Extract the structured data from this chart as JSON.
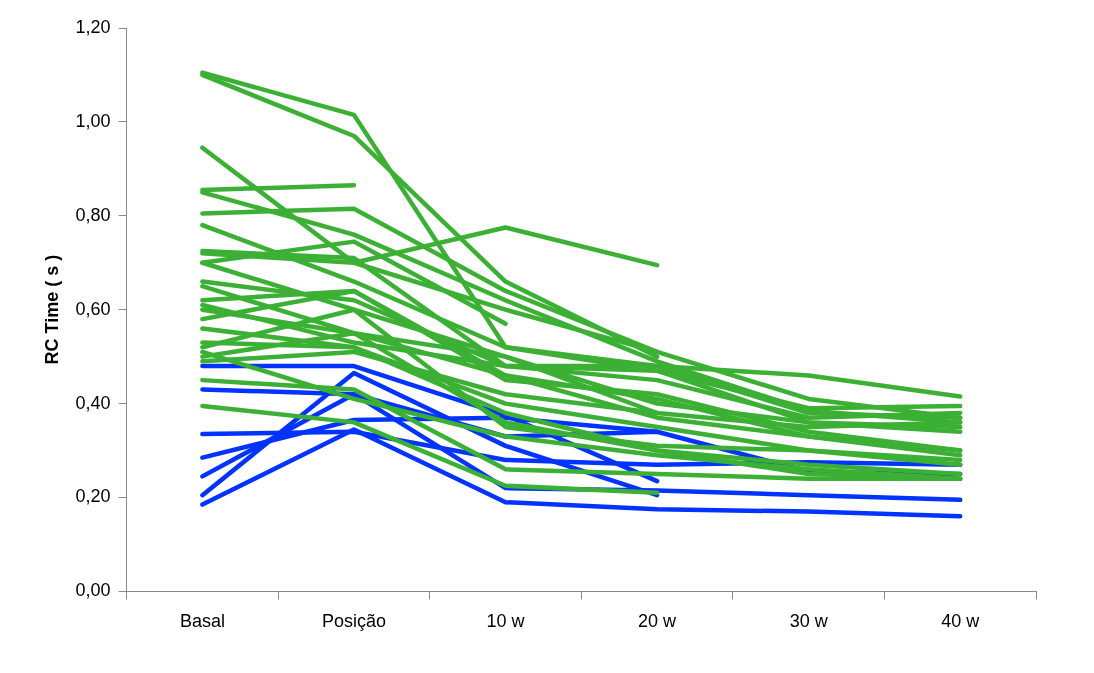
{
  "chart_data": {
    "type": "line",
    "ylabel": "RC Time ( s )",
    "categories": [
      "Basal",
      "Posição",
      "10 w",
      "20 w",
      "30 w",
      "40 w"
    ],
    "ylim": [
      0,
      1.2
    ],
    "yticks": [
      {
        "value": 0,
        "label": "0,00"
      },
      {
        "value": 0.2,
        "label": "0,20"
      },
      {
        "value": 0.4,
        "label": "0,40"
      },
      {
        "value": 0.6,
        "label": "0,60"
      },
      {
        "value": 0.8,
        "label": "0,80"
      },
      {
        "value": 1.0,
        "label": "1,00"
      },
      {
        "value": 1.2,
        "label": "1,20"
      }
    ],
    "grid": false,
    "legend": false,
    "marker": "none",
    "line_style": "solid",
    "series": [
      {
        "color": "#3cb034",
        "values": [
          1.1,
          0.97,
          0.66,
          0.5,
          null,
          null
        ]
      },
      {
        "color": "#3cb034",
        "values": [
          1.105,
          1.015,
          0.52,
          0.48,
          0.46,
          0.415
        ]
      },
      {
        "color": "#3cb034",
        "values": [
          0.945,
          0.7,
          0.6,
          0.51,
          null,
          null
        ]
      },
      {
        "color": "#3cb034",
        "values": [
          0.855,
          0.865,
          null,
          null,
          null,
          null
        ]
      },
      {
        "color": "#3cb034",
        "values": [
          0.805,
          0.815,
          0.64,
          0.51,
          0.41,
          0.37
        ]
      },
      {
        "color": "#3cb034",
        "values": [
          0.85,
          0.76,
          0.62,
          0.49,
          0.385,
          0.36
        ]
      },
      {
        "color": "#3cb034",
        "values": [
          0.78,
          0.66,
          0.52,
          0.47,
          0.39,
          0.395
        ]
      },
      {
        "color": "#3cb034",
        "values": [
          0.725,
          0.71,
          0.48,
          0.45,
          0.37,
          0.38
        ]
      },
      {
        "color": "#3cb034",
        "values": [
          0.72,
          0.7,
          0.775,
          0.695,
          null,
          null
        ]
      },
      {
        "color": "#3cb034",
        "values": [
          0.7,
          0.745,
          0.57,
          null,
          null,
          null
        ]
      },
      {
        "color": "#3cb034",
        "values": [
          0.66,
          0.62,
          0.48,
          0.47,
          0.36,
          0.34
        ]
      },
      {
        "color": "#3cb034",
        "values": [
          0.62,
          0.64,
          0.45,
          0.42,
          0.34,
          0.3
        ]
      },
      {
        "color": "#3cb034",
        "values": [
          0.6,
          0.55,
          0.5,
          0.38,
          0.35,
          0.36
        ]
      },
      {
        "color": "#3cb034",
        "values": [
          0.58,
          0.64,
          0.46,
          0.41,
          0.33,
          0.29
        ]
      },
      {
        "color": "#3cb034",
        "values": [
          0.56,
          0.52,
          0.4,
          0.35,
          0.3,
          0.27
        ]
      },
      {
        "color": "#3cb034",
        "values": [
          0.53,
          0.52,
          0.38,
          0.3,
          0.27,
          0.25
        ]
      },
      {
        "color": "#3cb034",
        "values": [
          0.52,
          0.6,
          0.35,
          0.31,
          0.3,
          0.28
        ]
      },
      {
        "color": "#3cb034",
        "values": [
          0.5,
          0.55,
          0.36,
          0.3,
          0.25,
          0.24
        ]
      },
      {
        "color": "#3cb034",
        "values": [
          0.49,
          0.51,
          0.42,
          0.38,
          null,
          null
        ]
      },
      {
        "color": "#3cb034",
        "values": [
          0.45,
          0.43,
          0.26,
          0.25,
          0.24,
          0.24
        ]
      },
      {
        "color": "#3cb034",
        "values": [
          0.395,
          0.36,
          0.225,
          0.21,
          null,
          null
        ]
      },
      {
        "color": "#3cb034",
        "values": [
          0.7,
          0.6,
          0.5,
          0.4,
          0.36,
          0.35
        ]
      },
      {
        "color": "#3cb034",
        "values": [
          0.65,
          0.55,
          0.46,
          0.37,
          0.33,
          0.3
        ]
      },
      {
        "color": "#3cb034",
        "values": [
          0.51,
          0.41,
          0.33,
          0.29,
          0.26,
          0.24
        ]
      },
      {
        "color": "#3cb034",
        "values": [
          0.61,
          0.53,
          0.48,
          0.48,
          0.38,
          0.37
        ]
      },
      {
        "color": "#0033ff",
        "values": [
          0.48,
          0.48,
          0.375,
          0.235,
          null,
          null
        ]
      },
      {
        "color": "#0033ff",
        "values": [
          0.43,
          0.42,
          0.33,
          0.34,
          0.255,
          0.25
        ]
      },
      {
        "color": "#0033ff",
        "values": [
          0.335,
          0.34,
          0.28,
          0.27,
          0.275,
          0.27
        ]
      },
      {
        "color": "#0033ff",
        "values": [
          0.285,
          0.365,
          0.37,
          0.34,
          null,
          null
        ]
      },
      {
        "color": "#0033ff",
        "values": [
          0.245,
          0.42,
          0.22,
          0.215,
          0.205,
          0.195
        ]
      },
      {
        "color": "#0033ff",
        "values": [
          0.205,
          0.465,
          0.31,
          0.205,
          null,
          null
        ]
      },
      {
        "color": "#0033ff",
        "values": [
          0.185,
          0.345,
          0.19,
          0.175,
          0.17,
          0.16
        ]
      }
    ]
  }
}
